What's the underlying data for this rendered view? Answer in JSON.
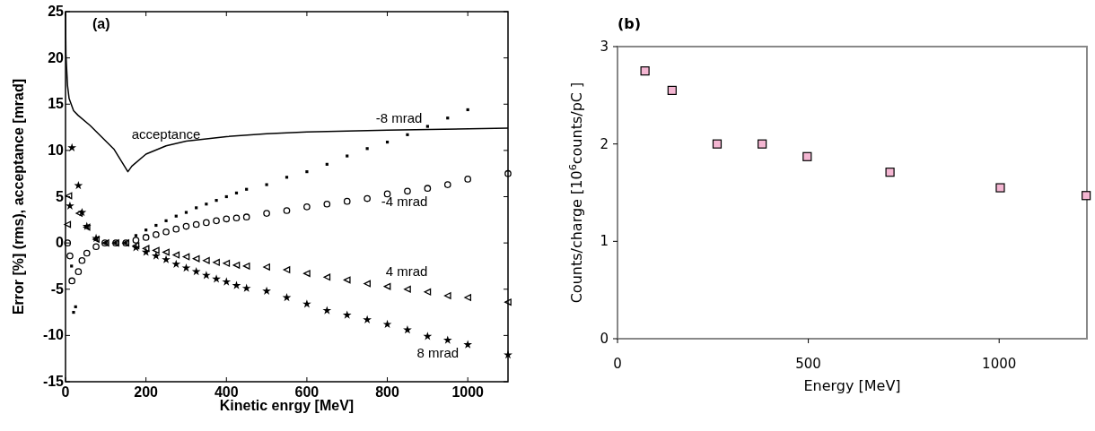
{
  "chart_data": [
    {
      "type": "scatter",
      "title": "(a)",
      "xlabel": "Kinetic enrgy [MeV]",
      "ylabel": "Error [%] (rms), acceptance [mrad]",
      "xlim": [
        0,
        1100
      ],
      "xticks": [
        0,
        200,
        400,
        600,
        800,
        1000
      ],
      "ylim": [
        -15,
        25
      ],
      "yticks": [
        -15,
        -10,
        -5,
        0,
        5,
        10,
        15,
        20,
        25
      ],
      "grid": false,
      "legend": false,
      "series": [
        {
          "name": "acceptance",
          "type": "line",
          "color": "#000000",
          "marker": "none",
          "line_style": "solid",
          "x": [
            0,
            1,
            5,
            9,
            20,
            31,
            61,
            121,
            155,
            165,
            200,
            250,
            300,
            400,
            500,
            600,
            800,
            1100
          ],
          "values": [
            25,
            20.4,
            17,
            15.6,
            14.3,
            13.8,
            12.7,
            10.1,
            7.7,
            8.3,
            9.6,
            10.5,
            11.0,
            11.5,
            11.8,
            12.0,
            12.2,
            12.4
          ]
        },
        {
          "name": "-8 mrad",
          "color": "#000000",
          "marker": "square",
          "x": [
            15,
            20,
            25,
            75,
            100,
            125,
            150,
            175,
            200,
            225,
            250,
            275,
            300,
            325,
            350,
            375,
            400,
            425,
            450,
            500,
            550,
            600,
            650,
            700,
            750,
            800,
            850,
            900,
            950,
            1000
          ],
          "values": [
            -2.5,
            -7.5,
            -6.9,
            null,
            0,
            0,
            0,
            0.8,
            1.4,
            1.9,
            2.4,
            2.9,
            3.3,
            3.8,
            4.2,
            4.6,
            5.0,
            5.4,
            5.8,
            6.3,
            7.1,
            7.7,
            8.5,
            9.4,
            10.2,
            10.9,
            11.7,
            12.6,
            13.5,
            14.4
          ]
        },
        {
          "name": "-4 mrad",
          "color": "#000000",
          "marker": "circle",
          "x": [
            5,
            11,
            16,
            32,
            41,
            53,
            76,
            98,
            125,
            150,
            175,
            200,
            225,
            250,
            275,
            300,
            325,
            350,
            375,
            400,
            425,
            450,
            500,
            550,
            600,
            650,
            700,
            750,
            800,
            850,
            900,
            950,
            1000,
            1100
          ],
          "values": [
            0,
            -1.4,
            -4.1,
            -3.1,
            -1.9,
            -1.1,
            -0.4,
            0,
            0,
            0,
            0.3,
            0.6,
            0.9,
            1.2,
            1.5,
            1.8,
            2.0,
            2.2,
            2.4,
            2.6,
            2.7,
            2.8,
            3.2,
            3.5,
            3.9,
            4.2,
            4.5,
            4.8,
            5.3,
            5.6,
            5.9,
            6.3,
            6.9,
            7.5
          ]
        },
        {
          "name": "4 mrad",
          "color": "#000000",
          "marker": "triangle",
          "x": [
            5,
            8,
            34,
            53,
            76,
            100,
            125,
            150,
            175,
            200,
            225,
            250,
            275,
            300,
            325,
            350,
            375,
            400,
            425,
            450,
            500,
            550,
            600,
            650,
            700,
            750,
            800,
            850,
            900,
            950,
            1000,
            1100
          ],
          "values": [
            2.0,
            5.1,
            3.2,
            1.7,
            0.4,
            0,
            0,
            0,
            -0.3,
            -0.6,
            -0.8,
            -1.0,
            -1.3,
            -1.5,
            -1.7,
            -1.9,
            -2.1,
            -2.2,
            -2.4,
            -2.5,
            -2.6,
            -2.9,
            -3.3,
            -3.7,
            -4.0,
            -4.4,
            -4.7,
            -5.0,
            -5.3,
            -5.7,
            -5.9,
            -6.4
          ]
        },
        {
          "name": "8 mrad",
          "color": "#000000",
          "marker": "star",
          "x": [
            11,
            16,
            32,
            41,
            53,
            76,
            175,
            200,
            225,
            250,
            275,
            300,
            325,
            350,
            375,
            400,
            425,
            450,
            500,
            550,
            600,
            650,
            700,
            750,
            800,
            850,
            900,
            950,
            1000,
            1100
          ],
          "values": [
            4.0,
            10.3,
            6.2,
            3.3,
            1.8,
            0.5,
            -0.5,
            -1.0,
            -1.4,
            -1.8,
            -2.3,
            -2.7,
            -3.1,
            -3.5,
            -3.9,
            -4.2,
            -4.6,
            -4.9,
            -5.2,
            -5.9,
            -6.6,
            -7.3,
            -7.8,
            -8.3,
            -8.8,
            -9.4,
            -10.1,
            -10.5,
            -11.0,
            -12.1
          ]
        }
      ]
    },
    {
      "type": "scatter",
      "title": "(b)",
      "xlabel": "Energy [MeV]",
      "ylabel": "Counts/charge [10$^{6}$counts/pC ]",
      "xlim": [
        0,
        1230
      ],
      "xticks": [
        0,
        500,
        1000
      ],
      "ylim": [
        0,
        3
      ],
      "yticks": [
        0,
        1,
        2,
        3
      ],
      "grid": false,
      "legend": false,
      "marker": "square",
      "color": "#f4b6d2",
      "x": [
        72,
        143,
        261,
        379,
        497,
        714,
        1003,
        1228
      ],
      "values": [
        2.75,
        2.55,
        2.0,
        2.0,
        1.87,
        1.71,
        1.55,
        1.47
      ]
    }
  ]
}
